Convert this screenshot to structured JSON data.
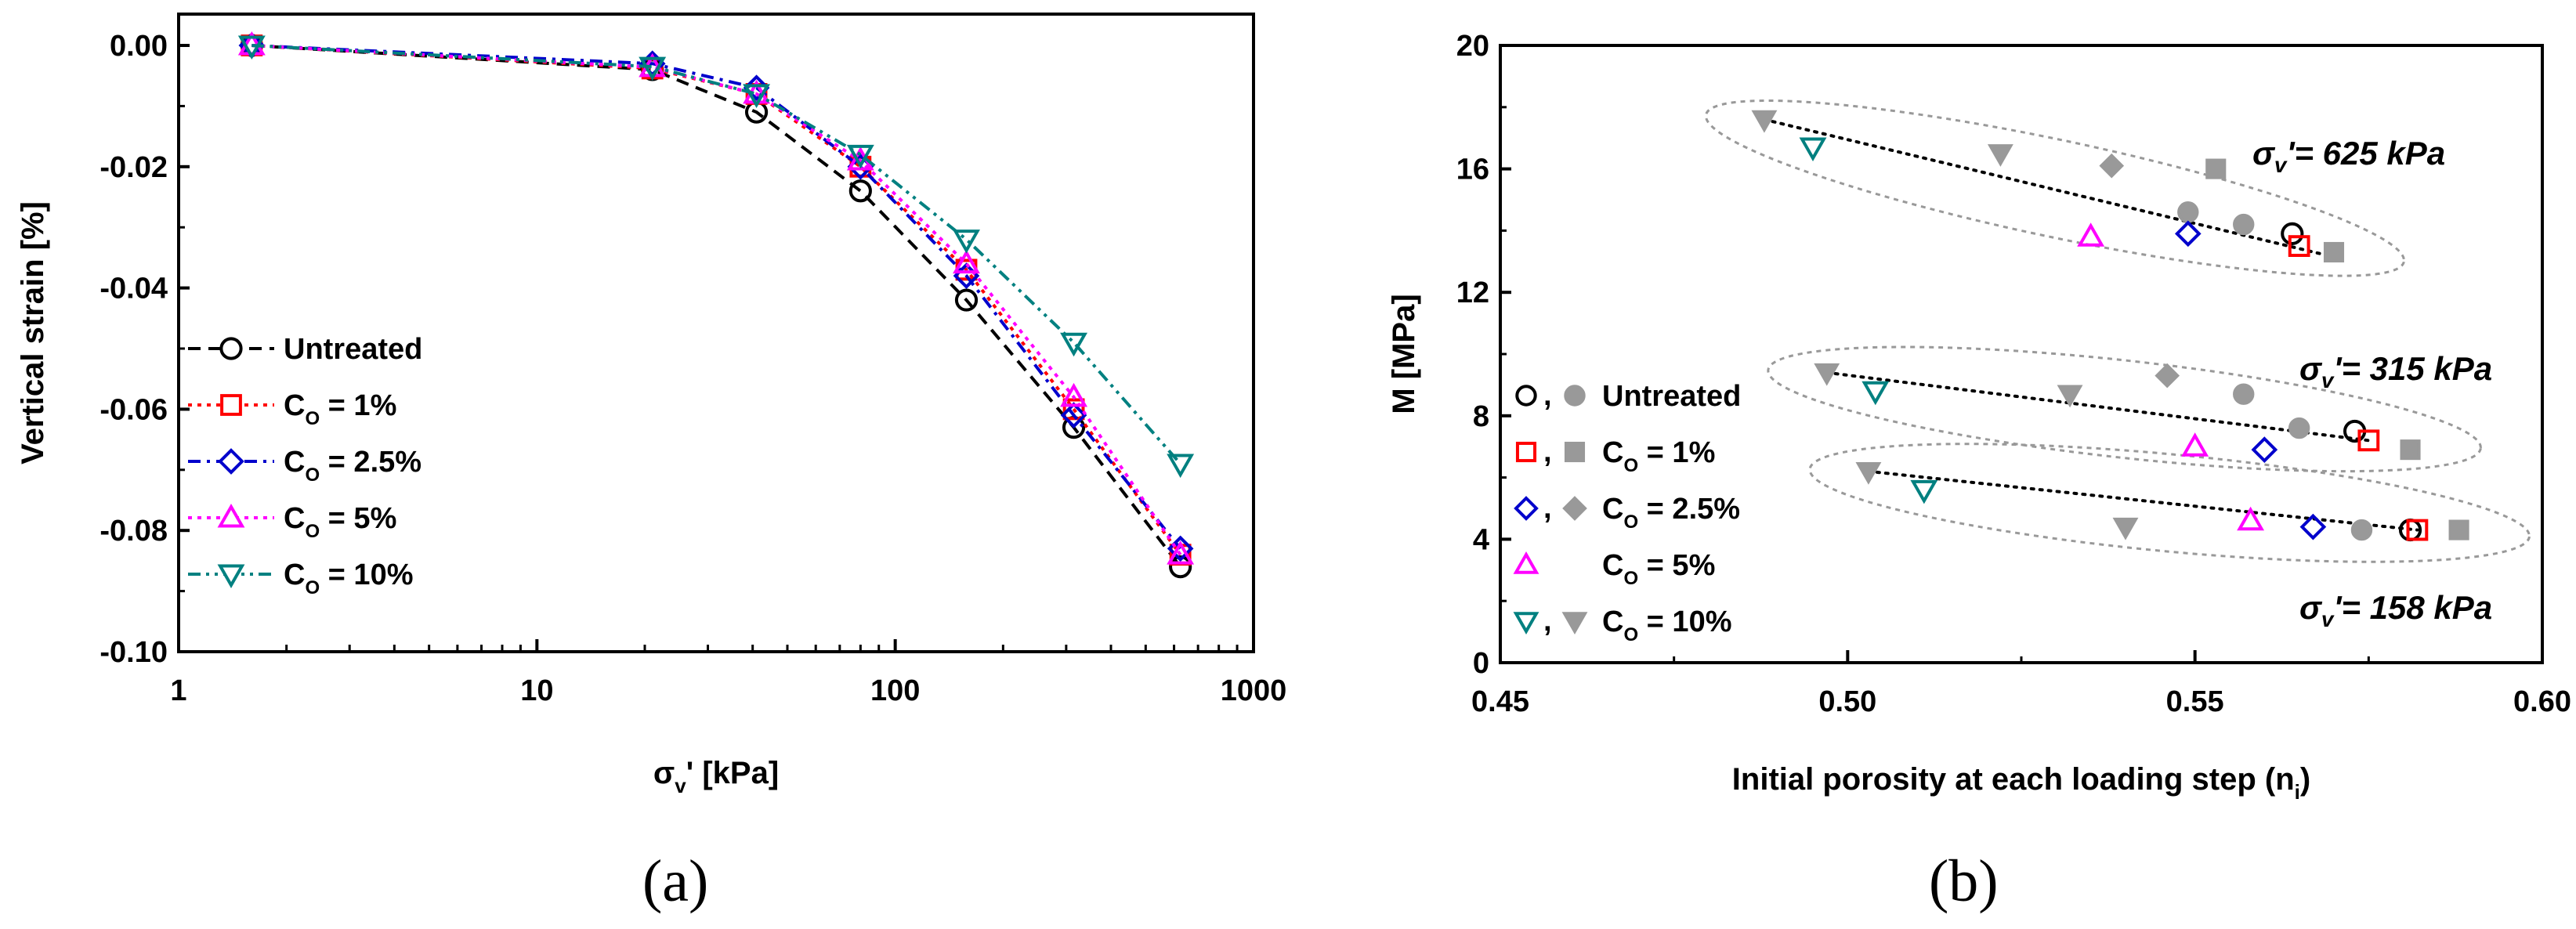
{
  "chart_data": [
    {
      "panel": "(a)",
      "type": "line",
      "xscale": "log",
      "xlim": [
        1,
        1000
      ],
      "ylim": [
        -0.1,
        0.0
      ],
      "xticks": [
        "1",
        "10",
        "100",
        "1000"
      ],
      "yticks": [
        "0.00",
        "-0.02",
        "-0.04",
        "-0.06",
        "-0.08",
        "-0.10"
      ],
      "xlabel": {
        "main": "σ",
        "sub": "v",
        "tail": "' [kPa]"
      },
      "ylabel": "Vertical strain [%]",
      "legend_position": "lower-left",
      "x": [
        1.6,
        21,
        41,
        80,
        158,
        315,
        625
      ],
      "series": [
        {
          "name": "Untreated",
          "label_main": "Untreated",
          "label_sub": "",
          "label_tail": "",
          "color": "#000000",
          "marker": "circle",
          "dash": "dash",
          "values": [
            0.0,
            -0.004,
            -0.011,
            -0.024,
            -0.042,
            -0.063,
            -0.086
          ]
        },
        {
          "name": "Co = 1%",
          "label_main": "C",
          "label_sub": "O",
          "label_tail": " = 1%",
          "color": "#ff0000",
          "marker": "square",
          "dash": "dot",
          "values": [
            0.0,
            -0.0038,
            -0.008,
            -0.02,
            -0.037,
            -0.06,
            -0.084
          ]
        },
        {
          "name": "Co = 2.5%",
          "label_main": "C",
          "label_sub": "O",
          "label_tail": " = 2.5%",
          "color": "#0000cc",
          "marker": "diamond",
          "dash": "dashdot",
          "values": [
            0.0,
            -0.003,
            -0.007,
            -0.02,
            -0.038,
            -0.061,
            -0.083
          ]
        },
        {
          "name": "Co = 5%",
          "label_main": "C",
          "label_sub": "O",
          "label_tail": " = 5%",
          "color": "#ff00ff",
          "marker": "triangle-up",
          "dash": "dot",
          "values": [
            0.0,
            -0.0036,
            -0.008,
            -0.019,
            -0.036,
            -0.058,
            -0.084
          ]
        },
        {
          "name": "Co = 10%",
          "label_main": "C",
          "label_sub": "O",
          "label_tail": " = 10%",
          "color": "#008080",
          "marker": "triangle-down",
          "dash": "dashdotdot",
          "values": [
            0.0,
            -0.0035,
            -0.008,
            -0.018,
            -0.032,
            -0.049,
            -0.069
          ]
        }
      ]
    },
    {
      "panel": "(b)",
      "type": "scatter",
      "xlim": [
        0.45,
        0.6
      ],
      "ylim": [
        0,
        20
      ],
      "xticks": [
        "0.45",
        "0.50",
        "0.55",
        "0.60"
      ],
      "yticks": [
        "0",
        "4",
        "8",
        "12",
        "16",
        "20"
      ],
      "xlabel": {
        "main": "Initial porosity at each loading step (n",
        "sub": "i",
        "tail": ")"
      },
      "ylabel": "M [MPa]",
      "legend_position": "center-left",
      "legend": [
        {
          "open_marker": "circle",
          "filled_marker": "circle",
          "color": "#000000",
          "sep": ",",
          "label_main": "Untreated",
          "label_sub": "",
          "label_tail": ""
        },
        {
          "open_marker": "square",
          "filled_marker": "square",
          "color": "#ff0000",
          "sep": ",",
          "label_main": "C",
          "label_sub": "O",
          "label_tail": " = 1%"
        },
        {
          "open_marker": "diamond",
          "filled_marker": "diamond",
          "color": "#0000cc",
          "sep": ",",
          "label_main": "C",
          "label_sub": "O",
          "label_tail": " = 2.5%"
        },
        {
          "open_marker": "triangle-up",
          "filled_marker": null,
          "color": "#ff00ff",
          "sep": "",
          "label_main": "C",
          "label_sub": "O",
          "label_tail": " = 5%"
        },
        {
          "open_marker": "triangle-down",
          "filled_marker": "triangle-down",
          "color": "#008080",
          "sep": ",",
          "label_main": "C",
          "label_sub": "O",
          "label_tail": " = 10%"
        }
      ],
      "groups": [
        {
          "label": "σv' = 625 kPa",
          "label_main": "σ",
          "label_sub": "v",
          "label_tail": "'= 625 kPa",
          "open_points": [
            {
              "marker": "triangle-down",
              "color": "#008080",
              "n": 0.495,
              "M": 16.7
            },
            {
              "marker": "triangle-up",
              "color": "#ff00ff",
              "n": 0.535,
              "M": 13.8
            },
            {
              "marker": "diamond",
              "color": "#0000cc",
              "n": 0.549,
              "M": 13.9
            },
            {
              "marker": "circle",
              "color": "#000000",
              "n": 0.564,
              "M": 13.9
            },
            {
              "marker": "square",
              "color": "#ff0000",
              "n": 0.565,
              "M": 13.5
            }
          ],
          "filled_points": [
            {
              "marker": "triangle-down",
              "n": 0.488,
              "M": 17.6
            },
            {
              "marker": "triangle-down",
              "n": 0.522,
              "M": 16.5
            },
            {
              "marker": "diamond",
              "n": 0.538,
              "M": 16.1
            },
            {
              "marker": "square",
              "n": 0.553,
              "M": 16.0
            },
            {
              "marker": "circle",
              "n": 0.549,
              "M": 14.6
            },
            {
              "marker": "circle",
              "n": 0.557,
              "M": 14.2
            },
            {
              "marker": "square",
              "n": 0.57,
              "M": 13.3
            }
          ],
          "trend": [
            [
              0.488,
              17.6
            ],
            [
              0.569,
              13.2
            ]
          ]
        },
        {
          "label": "σv' = 315 kPa",
          "label_main": "σ",
          "label_sub": "v",
          "label_tail": "'= 315 kPa",
          "open_points": [
            {
              "marker": "triangle-down",
              "color": "#008080",
              "n": 0.504,
              "M": 8.8
            },
            {
              "marker": "triangle-up",
              "color": "#ff00ff",
              "n": 0.55,
              "M": 7.0
            },
            {
              "marker": "diamond",
              "color": "#0000cc",
              "n": 0.56,
              "M": 6.9
            },
            {
              "marker": "circle",
              "color": "#000000",
              "n": 0.573,
              "M": 7.5
            },
            {
              "marker": "square",
              "color": "#ff0000",
              "n": 0.575,
              "M": 7.2
            }
          ],
          "filled_points": [
            {
              "marker": "triangle-down",
              "n": 0.497,
              "M": 9.4
            },
            {
              "marker": "triangle-down",
              "n": 0.532,
              "M": 8.7
            },
            {
              "marker": "diamond",
              "n": 0.546,
              "M": 9.3
            },
            {
              "marker": "circle",
              "n": 0.557,
              "M": 8.7
            },
            {
              "marker": "circle",
              "n": 0.565,
              "M": 7.6
            },
            {
              "marker": "square",
              "n": 0.581,
              "M": 6.9
            }
          ],
          "trend": [
            [
              0.497,
              9.4
            ],
            [
              0.575,
              7.2
            ]
          ]
        },
        {
          "label": "σv' = 158 kPa",
          "label_main": "σ",
          "label_sub": "v",
          "label_tail": "'= 158 kPa",
          "open_points": [
            {
              "marker": "triangle-down",
              "color": "#008080",
              "n": 0.511,
              "M": 5.6
            },
            {
              "marker": "triangle-up",
              "color": "#ff00ff",
              "n": 0.558,
              "M": 4.6
            },
            {
              "marker": "diamond",
              "color": "#0000cc",
              "n": 0.567,
              "M": 4.4
            },
            {
              "marker": "circle",
              "color": "#000000",
              "n": 0.581,
              "M": 4.3
            },
            {
              "marker": "square",
              "color": "#ff0000",
              "n": 0.582,
              "M": 4.3
            }
          ],
          "filled_points": [
            {
              "marker": "triangle-down",
              "n": 0.503,
              "M": 6.2
            },
            {
              "marker": "triangle-down",
              "n": 0.54,
              "M": 4.4
            },
            {
              "marker": "circle",
              "n": 0.574,
              "M": 4.3
            },
            {
              "marker": "square",
              "n": 0.588,
              "M": 4.3
            }
          ],
          "trend": [
            [
              0.503,
              6.2
            ],
            [
              0.582,
              4.3
            ]
          ]
        }
      ]
    }
  ]
}
